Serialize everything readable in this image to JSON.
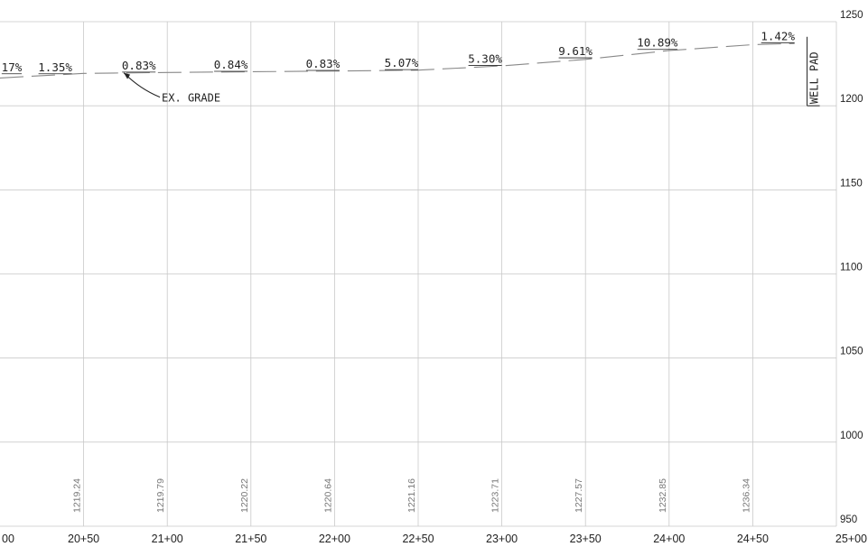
{
  "chart_data": {
    "type": "line",
    "title": "",
    "xlabel": "",
    "ylabel": "",
    "xlim": [
      2000,
      2500
    ],
    "ylim": [
      950,
      1250
    ],
    "grid": true,
    "x_ticks": [
      2050,
      2100,
      2150,
      2200,
      2250,
      2300,
      2350,
      2400,
      2450,
      2500
    ],
    "x_tick_labels": [
      "00",
      "20+50",
      "21+00",
      "21+50",
      "22+00",
      "22+50",
      "23+00",
      "23+50",
      "24+00",
      "24+50",
      "25+00"
    ],
    "x_tick_label_positions": [
      2000,
      2050,
      2100,
      2150,
      2200,
      2250,
      2300,
      2350,
      2400,
      2450,
      2500
    ],
    "y_ticks": [
      950,
      1000,
      1050,
      1100,
      1150,
      1200,
      1250
    ],
    "y_tick_labels": [
      "950",
      "1000",
      "1050",
      "1100",
      "1150",
      "1200",
      "1250"
    ],
    "series": [
      {
        "type": "dashed",
        "x": [
          2000,
          2050,
          2100,
          2150,
          2200,
          2250,
          2300,
          2350,
          2400,
          2450,
          2475
        ],
        "y": [
          1216.5,
          1219.24,
          1219.79,
          1220.22,
          1220.64,
          1221.16,
          1223.71,
          1227.57,
          1232.85,
          1236.34,
          1237.0
        ]
      }
    ],
    "ground_elevations": [
      {
        "x": 2050,
        "label": "1219.24"
      },
      {
        "x": 2100,
        "label": "1219.79"
      },
      {
        "x": 2150,
        "label": "1220.22"
      },
      {
        "x": 2200,
        "label": "1220.64"
      },
      {
        "x": 2250,
        "label": "1221.16"
      },
      {
        "x": 2300,
        "label": "1223.71"
      },
      {
        "x": 2350,
        "label": "1227.57"
      },
      {
        "x": 2400,
        "label": "1232.85"
      },
      {
        "x": 2450,
        "label": "1236.34"
      }
    ],
    "slope_labels": [
      {
        "x": 2007,
        "y": 1219,
        "label": "17%"
      },
      {
        "x": 2033,
        "y": 1219,
        "label": "1.35%"
      },
      {
        "x": 2083,
        "y": 1220,
        "label": "0.83%"
      },
      {
        "x": 2138,
        "y": 1220.5,
        "label": "0.84%"
      },
      {
        "x": 2193,
        "y": 1221,
        "label": "0.83%"
      },
      {
        "x": 2240,
        "y": 1221.5,
        "label": "5.07%"
      },
      {
        "x": 2290,
        "y": 1224,
        "label": "5.30%"
      },
      {
        "x": 2344,
        "y": 1228.5,
        "label": "9.61%"
      },
      {
        "x": 2393,
        "y": 1233.5,
        "label": "10.89%"
      },
      {
        "x": 2465,
        "y": 1237.5,
        "label": "1.42%"
      }
    ],
    "annotations": [
      {
        "label": "EX. GRADE",
        "x": 2070,
        "y": 1219.5
      },
      {
        "label": "WELL PAD",
        "x": 2476,
        "y": 1230
      }
    ]
  }
}
